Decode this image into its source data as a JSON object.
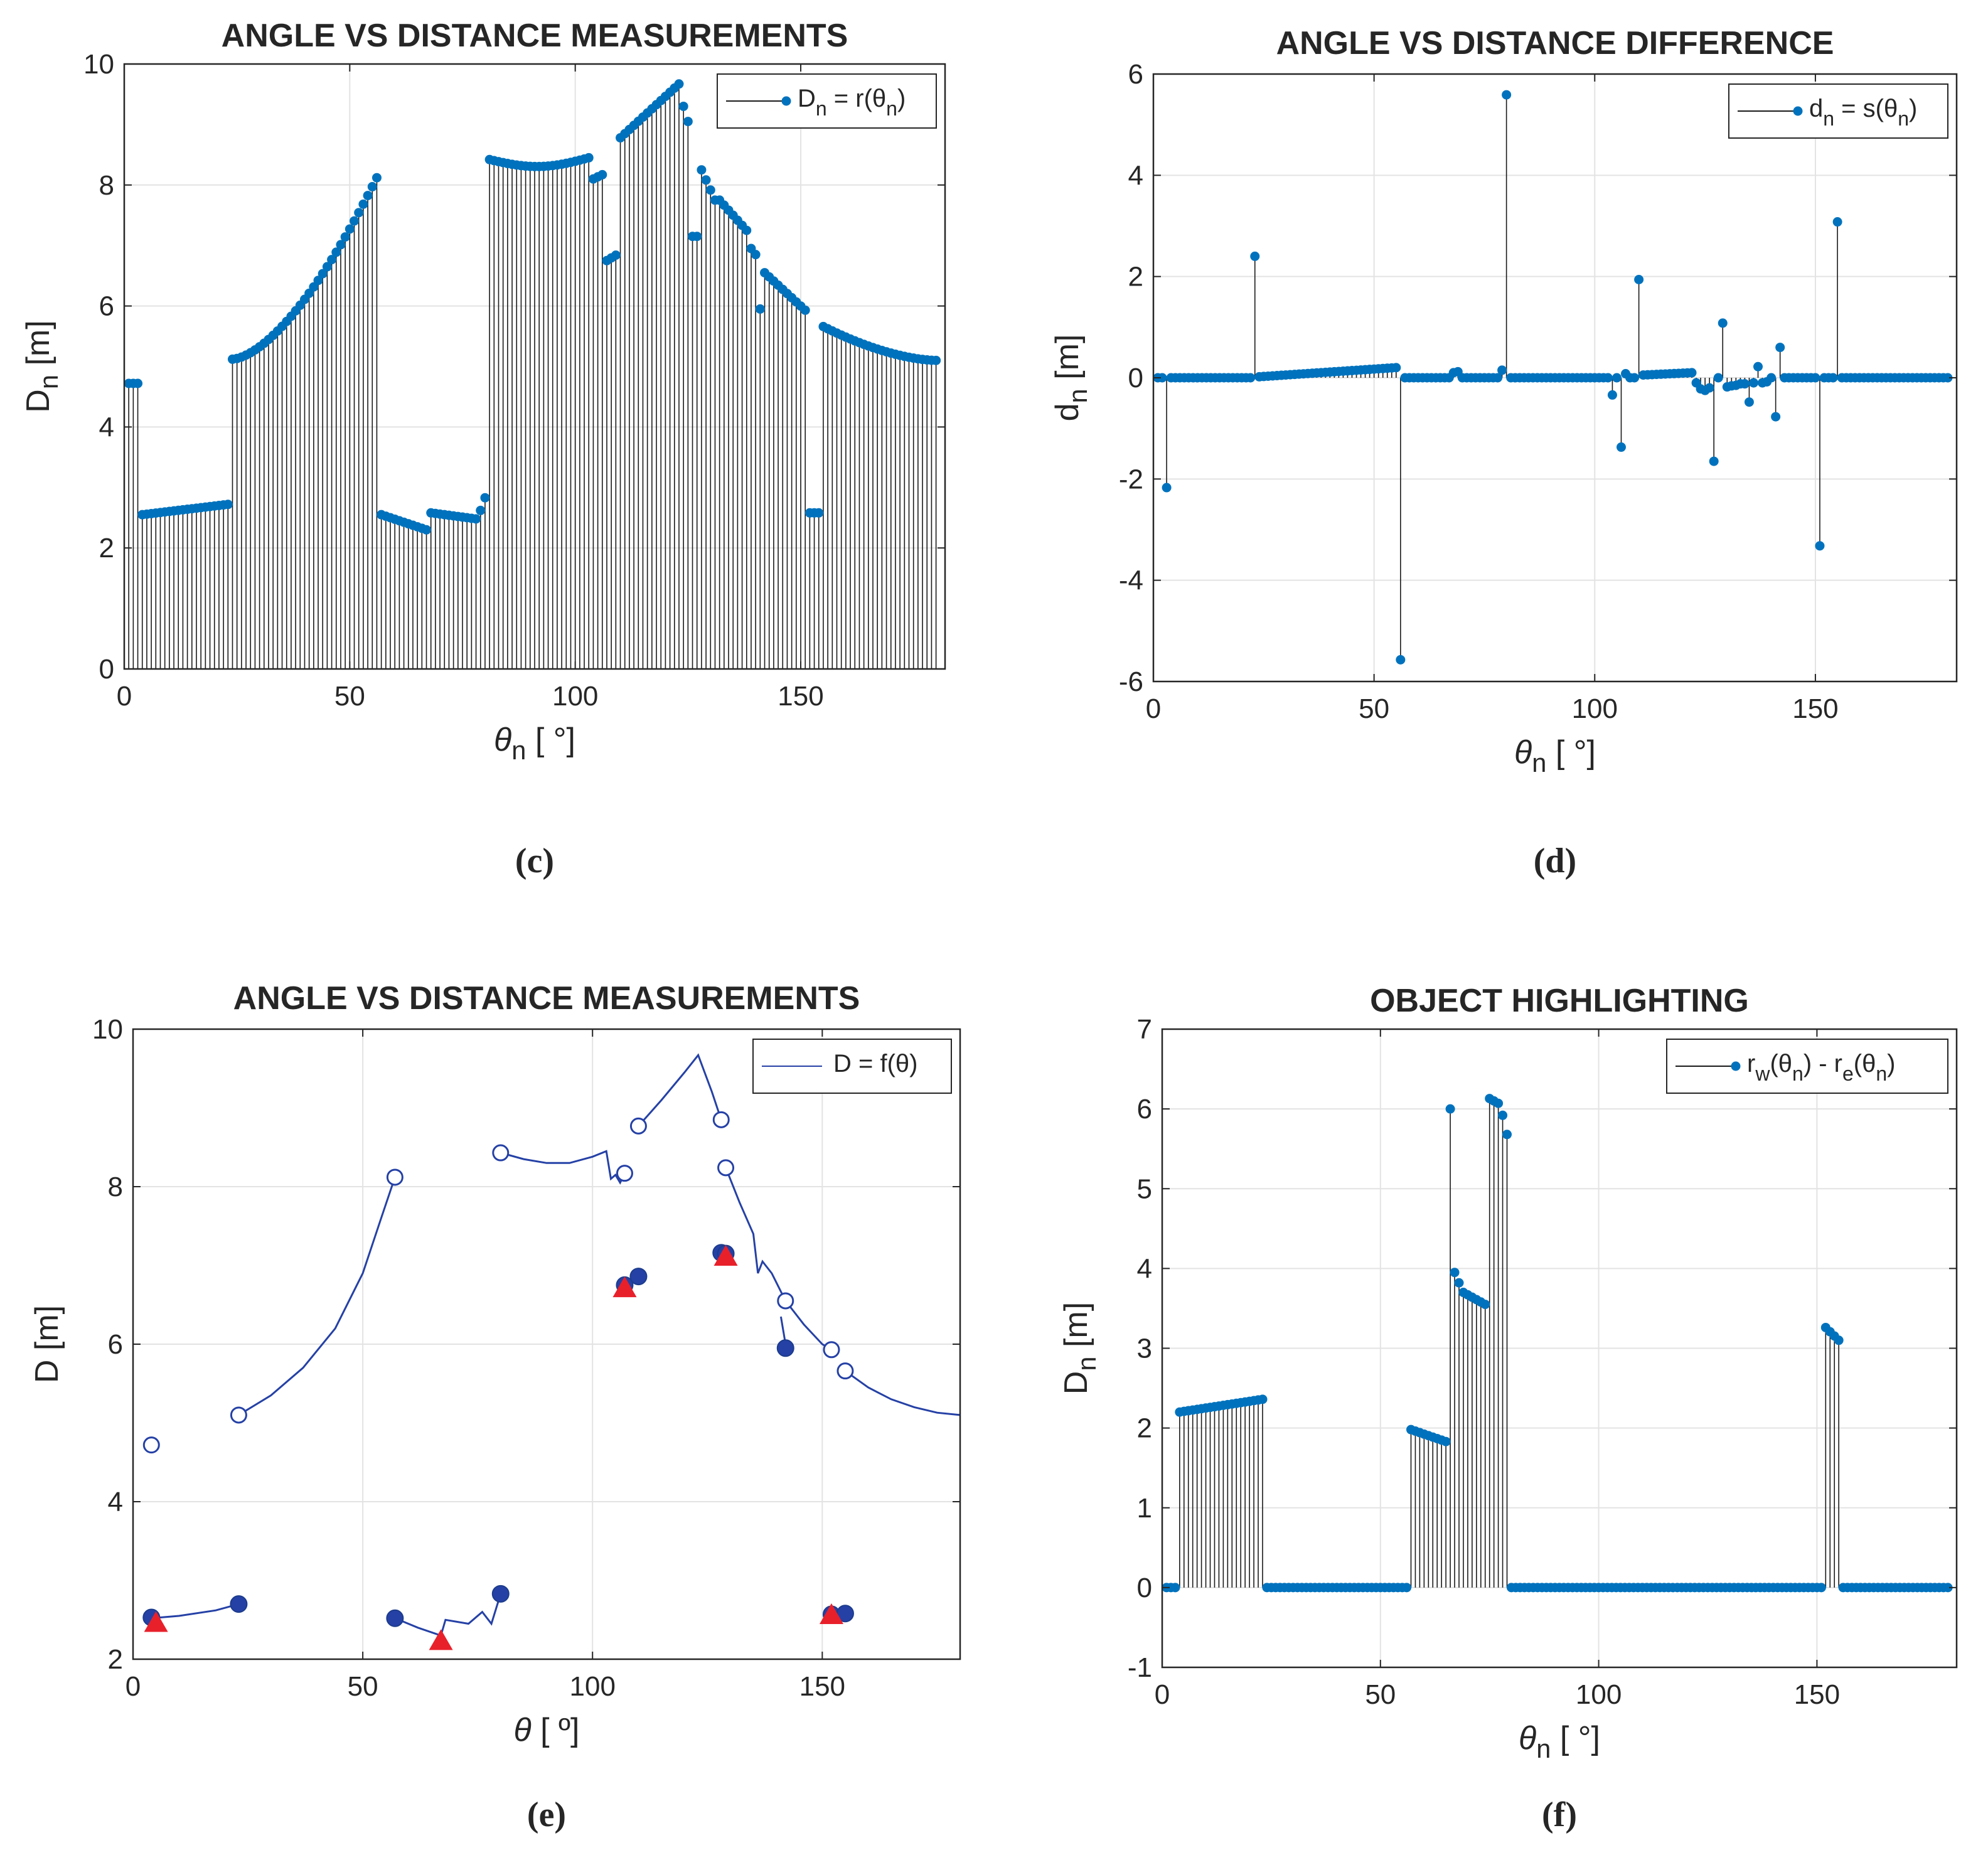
{
  "figure": {
    "panels": [
      "c",
      "d",
      "e",
      "f"
    ]
  },
  "chart_data": [
    {
      "id": "c",
      "type": "stem",
      "caption": "(c)",
      "title": "ANGLE VS DISTANCE MEASUREMENTS",
      "xlabel": "θ",
      "xlabel_sub": "n",
      "xlabel_unit": " [ °]",
      "ylabel": "D",
      "ylabel_sub": "n",
      "ylabel_unit": " [m]",
      "xlim": [
        0,
        182
      ],
      "ylim": [
        0,
        10
      ],
      "xticks": [
        0,
        50,
        100,
        150
      ],
      "yticks": [
        0,
        2,
        4,
        6,
        8,
        10
      ],
      "grid": true,
      "legend": {
        "position": "top-right",
        "text": "D",
        "sub": "n",
        "rest": " = r(θ",
        "sub2": "n",
        "close": ")"
      },
      "color": "#0072BD",
      "segments": [
        {
          "from": 1,
          "to": 3,
          "y": [
            4.72,
            4.72
          ]
        },
        {
          "from": 4,
          "to": 23,
          "y": [
            2.55,
            2.72
          ]
        },
        {
          "from": 24,
          "to": 56,
          "y": [
            5.12,
            8.12
          ],
          "curve": 1.6
        },
        {
          "from": 57,
          "to": 67,
          "y": [
            2.55,
            2.3
          ]
        },
        {
          "from": 68,
          "to": 78,
          "y": [
            2.58,
            2.48
          ]
        },
        {
          "from": 79,
          "to": 79,
          "y": [
            2.62,
            2.62
          ]
        },
        {
          "from": 80,
          "to": 80,
          "y": [
            2.83,
            2.83
          ]
        },
        {
          "from": 81,
          "to": 103,
          "y": [
            8.42,
            8.45
          ],
          "dip": 0.13
        },
        {
          "from": 104,
          "to": 106,
          "y": [
            8.1,
            8.17
          ]
        },
        {
          "from": 107,
          "to": 109,
          "y": [
            6.75,
            6.84
          ]
        },
        {
          "from": 110,
          "to": 123,
          "y": [
            8.78,
            9.67
          ]
        },
        {
          "from": 124,
          "to": 125,
          "y": [
            9.3,
            9.05
          ]
        },
        {
          "from": 126,
          "to": 127,
          "y": [
            7.15,
            7.15
          ]
        },
        {
          "from": 128,
          "to": 131,
          "y": [
            8.25,
            7.75
          ]
        },
        {
          "from": 132,
          "to": 138,
          "y": [
            7.75,
            7.25
          ]
        },
        {
          "from": 139,
          "to": 140,
          "y": [
            6.95,
            6.85
          ]
        },
        {
          "from": 141,
          "to": 141,
          "y": [
            5.95,
            5.95
          ]
        },
        {
          "from": 142,
          "to": 151,
          "y": [
            6.55,
            5.93
          ]
        },
        {
          "from": 152,
          "to": 154,
          "y": [
            2.58,
            2.58
          ]
        },
        {
          "from": 155,
          "to": 180,
          "y": [
            5.66,
            5.1
          ],
          "curve": 0.6
        }
      ]
    },
    {
      "id": "d",
      "type": "stem",
      "caption": "(d)",
      "title": "ANGLE VS DISTANCE DIFFERENCE",
      "xlabel": "θ",
      "xlabel_sub": "n",
      "xlabel_unit": " [ °]",
      "ylabel": "d",
      "ylabel_sub": "n",
      "ylabel_unit": " [m]",
      "xlim": [
        0,
        182
      ],
      "ylim": [
        -6,
        6
      ],
      "xticks": [
        0,
        50,
        100,
        150
      ],
      "yticks": [
        -6,
        -4,
        -2,
        0,
        2,
        4,
        6
      ],
      "grid": true,
      "legend": {
        "position": "top-right",
        "text": "d",
        "sub": "n",
        "rest": " = s(θ",
        "sub2": "n",
        "close": ")"
      },
      "color": "#0072BD",
      "segments": [
        {
          "from": 1,
          "to": 180,
          "y": [
            0.0,
            0.0
          ]
        },
        {
          "from": 24,
          "to": 55,
          "y": [
            0.02,
            0.2
          ]
        },
        {
          "from": 110,
          "to": 122,
          "y": [
            0.05,
            0.1
          ]
        }
      ],
      "spikes": [
        {
          "x": 3,
          "y": -2.17
        },
        {
          "x": 23,
          "y": 2.4
        },
        {
          "x": 56,
          "y": -5.57
        },
        {
          "x": 68,
          "y": 0.1
        },
        {
          "x": 69,
          "y": 0.12
        },
        {
          "x": 79,
          "y": 0.15
        },
        {
          "x": 80,
          "y": 5.59
        },
        {
          "x": 104,
          "y": -0.34
        },
        {
          "x": 106,
          "y": -1.37
        },
        {
          "x": 107,
          "y": 0.08
        },
        {
          "x": 110,
          "y": 1.94
        },
        {
          "x": 123,
          "y": -0.1
        },
        {
          "x": 124,
          "y": -0.22
        },
        {
          "x": 125,
          "y": -0.25
        },
        {
          "x": 126,
          "y": -0.2
        },
        {
          "x": 127,
          "y": -1.65
        },
        {
          "x": 128,
          "y": 0.0
        },
        {
          "x": 129,
          "y": 1.08
        },
        {
          "x": 130,
          "y": -0.18
        },
        {
          "x": 131,
          "y": -0.16
        },
        {
          "x": 132,
          "y": -0.15
        },
        {
          "x": 133,
          "y": -0.12
        },
        {
          "x": 134,
          "y": -0.12
        },
        {
          "x": 135,
          "y": -0.48
        },
        {
          "x": 136,
          "y": -0.1
        },
        {
          "x": 137,
          "y": 0.22
        },
        {
          "x": 138,
          "y": -0.1
        },
        {
          "x": 139,
          "y": -0.08
        },
        {
          "x": 141,
          "y": -0.77
        },
        {
          "x": 142,
          "y": 0.6
        },
        {
          "x": 151,
          "y": -3.32
        },
        {
          "x": 152,
          "y": 0.0
        },
        {
          "x": 155,
          "y": 3.08
        }
      ]
    },
    {
      "id": "e",
      "type": "line",
      "caption": "(e)",
      "title": "ANGLE VS DISTANCE MEASUREMENTS",
      "xlabel": "θ",
      "xlabel_unit": " [ º]",
      "ylabel": "D [m]",
      "xlim": [
        0,
        180
      ],
      "ylim": [
        2,
        10
      ],
      "xticks": [
        0,
        50,
        100,
        150
      ],
      "yticks": [
        2,
        4,
        6,
        8,
        10
      ],
      "grid": true,
      "legend": {
        "position": "top-right",
        "text": "D = f(θ)"
      },
      "color": "#2541A6",
      "series": [
        {
          "name": "lower-left",
          "points": [
            [
              4,
              2.52
            ],
            [
              10,
              2.55
            ],
            [
              18,
              2.62
            ],
            [
              23,
              2.7
            ]
          ]
        },
        {
          "name": "upper-left",
          "points": [
            [
              23,
              5.1
            ],
            [
              30,
              5.35
            ],
            [
              37,
              5.7
            ],
            [
              44,
              6.2
            ],
            [
              50,
              6.9
            ],
            [
              54,
              7.6
            ],
            [
              57,
              8.12
            ]
          ]
        },
        {
          "name": "middle-low",
          "points": [
            [
              57,
              2.52
            ],
            [
              62,
              2.4
            ],
            [
              67,
              2.3
            ],
            [
              68,
              2.5
            ],
            [
              73,
              2.45
            ],
            [
              76,
              2.6
            ],
            [
              78,
              2.45
            ],
            [
              80,
              2.83
            ]
          ]
        },
        {
          "name": "middle-high",
          "points": [
            [
              80,
              8.43
            ],
            [
              85,
              8.35
            ],
            [
              90,
              8.3
            ],
            [
              95,
              8.3
            ],
            [
              100,
              8.38
            ],
            [
              103,
              8.45
            ],
            [
              104,
              8.1
            ],
            [
              105,
              8.15
            ],
            [
              106,
              8.05
            ],
            [
              107,
              8.17
            ]
          ]
        },
        {
          "name": "peak",
          "points": [
            [
              110,
              8.77
            ],
            [
              115,
              9.1
            ],
            [
              120,
              9.45
            ],
            [
              123,
              9.67
            ],
            [
              126,
              9.2
            ],
            [
              128,
              8.85
            ]
          ]
        },
        {
          "name": "descent",
          "points": [
            [
              129,
              8.24
            ],
            [
              132,
              7.8
            ],
            [
              135,
              7.4
            ],
            [
              136,
              6.9
            ],
            [
              137,
              7.05
            ],
            [
              139,
              6.9
            ],
            [
              142,
              6.55
            ]
          ]
        },
        {
          "name": "small-jog",
          "points": [
            [
              141,
              6.35
            ],
            [
              142,
              6.0
            ],
            [
              142,
              5.95
            ]
          ]
        },
        {
          "name": "tail",
          "points": [
            [
              142,
              6.55
            ],
            [
              146,
              6.25
            ],
            [
              150,
              6.0
            ],
            [
              152,
              5.93
            ]
          ]
        },
        {
          "name": "bottom-right",
          "points": [
            [
              152,
              2.57
            ],
            [
              155,
              2.58
            ]
          ]
        },
        {
          "name": "tail2",
          "points": [
            [
              155,
              5.66
            ],
            [
              160,
              5.45
            ],
            [
              165,
              5.3
            ],
            [
              170,
              5.2
            ],
            [
              175,
              5.13
            ],
            [
              180,
              5.1
            ]
          ]
        }
      ],
      "open_markers": [
        [
          4,
          4.72
        ],
        [
          23,
          5.1
        ],
        [
          57,
          8.12
        ],
        [
          80,
          8.43
        ],
        [
          107,
          8.17
        ],
        [
          110,
          8.77
        ],
        [
          128,
          8.85
        ],
        [
          129,
          8.24
        ],
        [
          142,
          6.55
        ],
        [
          152,
          5.93
        ],
        [
          155,
          5.66
        ]
      ],
      "filled_markers": [
        [
          4,
          2.53
        ],
        [
          23,
          2.7
        ],
        [
          57,
          2.52
        ],
        [
          80,
          2.83
        ],
        [
          107,
          6.75
        ],
        [
          110,
          6.86
        ],
        [
          128,
          7.16
        ],
        [
          129,
          7.15
        ],
        [
          142,
          5.95
        ],
        [
          152,
          2.57
        ],
        [
          155,
          2.58
        ]
      ],
      "triangles": [
        [
          5,
          2.45
        ],
        [
          67,
          2.22
        ],
        [
          107,
          6.7
        ],
        [
          129,
          7.1
        ],
        [
          152,
          2.55
        ]
      ],
      "triangle_color": "#E8202A"
    },
    {
      "id": "f",
      "type": "stem",
      "caption": "(f)",
      "title": "OBJECT HIGHLIGHTING",
      "xlabel": "θ",
      "xlabel_sub": "n",
      "xlabel_unit": " [ °]",
      "ylabel": "D",
      "ylabel_sub": "n",
      "ylabel_unit": " [m]",
      "xlim": [
        0,
        182
      ],
      "ylim": [
        -1,
        7
      ],
      "xticks": [
        0,
        50,
        100,
        150
      ],
      "yticks": [
        -1,
        0,
        1,
        2,
        3,
        4,
        5,
        6,
        7
      ],
      "grid": true,
      "legend": {
        "position": "top-right",
        "text": "r",
        "sub": "w",
        "rest": "(θ",
        "sub2": "n",
        "mid": ") - r",
        "sub3": "e",
        "rest2": "(θ",
        "sub4": "n",
        "close": ")"
      },
      "color": "#0072BD",
      "segments": [
        {
          "from": 1,
          "to": 3,
          "y": [
            0,
            0
          ]
        },
        {
          "from": 4,
          "to": 23,
          "y": [
            2.2,
            2.36
          ]
        },
        {
          "from": 24,
          "to": 56,
          "y": [
            0,
            0
          ]
        },
        {
          "from": 57,
          "to": 65,
          "y": [
            1.98,
            1.83
          ]
        },
        {
          "from": 66,
          "to": 66,
          "y": [
            6.0,
            6.0
          ]
        },
        {
          "from": 67,
          "to": 67,
          "y": [
            3.95,
            3.95
          ]
        },
        {
          "from": 68,
          "to": 68,
          "y": [
            3.82,
            3.82
          ]
        },
        {
          "from": 69,
          "to": 74,
          "y": [
            3.7,
            3.55
          ]
        },
        {
          "from": 75,
          "to": 75,
          "y": [
            6.13,
            6.13
          ]
        },
        {
          "from": 76,
          "to": 76,
          "y": [
            6.1,
            6.1
          ]
        },
        {
          "from": 77,
          "to": 77,
          "y": [
            6.07,
            6.07
          ]
        },
        {
          "from": 78,
          "to": 78,
          "y": [
            5.92,
            5.92
          ]
        },
        {
          "from": 79,
          "to": 79,
          "y": [
            5.68,
            5.68
          ]
        },
        {
          "from": 80,
          "to": 151,
          "y": [
            0,
            0
          ]
        },
        {
          "from": 152,
          "to": 155,
          "y": [
            3.26,
            3.1
          ]
        },
        {
          "from": 156,
          "to": 180,
          "y": [
            0,
            0
          ]
        }
      ]
    }
  ]
}
